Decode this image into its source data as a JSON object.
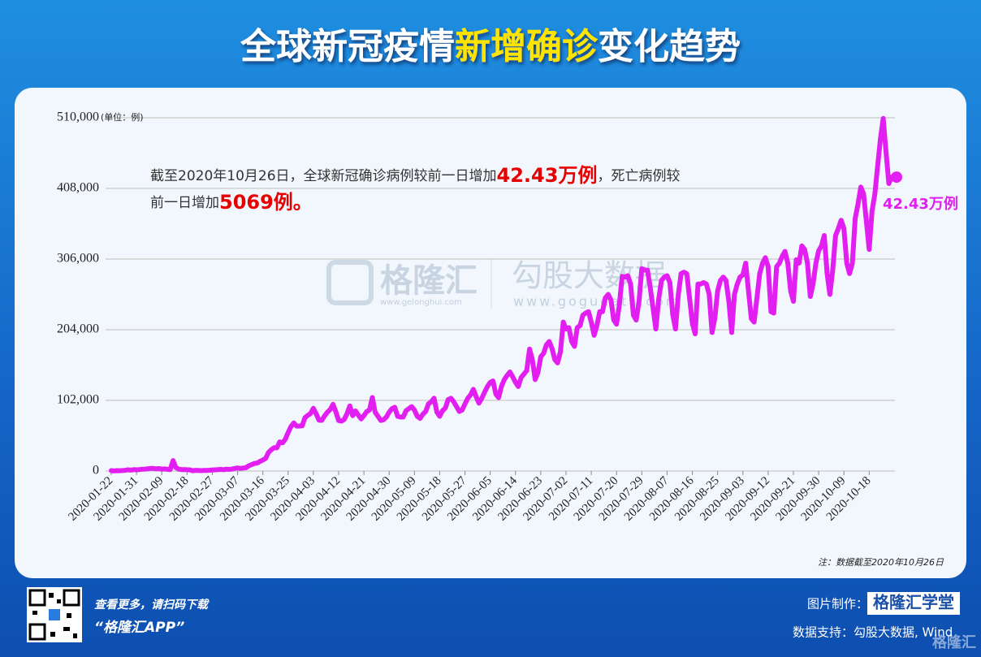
{
  "chart_data": {
    "type": "line",
    "title_parts": [
      {
        "text": "全球新冠疫情",
        "color": "#ffffff"
      },
      {
        "text": "新增确诊",
        "color": "#ffe400"
      },
      {
        "text": "变化趋势",
        "color": "#ffffff"
      }
    ],
    "unit": "(单位：例)",
    "annotation": [
      [
        {
          "text": "截至2020年10月26日，全球新冠确诊病例较前一日增加",
          "color": "#333333"
        },
        {
          "text": "42.43万例",
          "color": "#e60000"
        },
        {
          "text": "，死亡病例较",
          "color": "#333333"
        }
      ],
      [
        {
          "text": "前一日增加",
          "color": "#333333"
        },
        {
          "text": "5069例。",
          "color": "#e60000"
        }
      ]
    ],
    "end_label": "42.43万例",
    "note": "注：数据截至2020年10月26日",
    "watermark": {
      "brand": "格隆汇",
      "brand_url": "www.gelonghui.com",
      "data_brand": "勾股大数据",
      "data_url": "www.gogudata.com"
    },
    "categories": [
      "2020-01-22",
      null,
      null,
      null,
      null,
      null,
      null,
      null,
      null,
      "2020-01-31",
      null,
      null,
      null,
      null,
      null,
      null,
      null,
      null,
      "2020-02-09",
      null,
      null,
      null,
      null,
      null,
      null,
      null,
      null,
      "2020-02-18",
      null,
      null,
      null,
      null,
      null,
      null,
      null,
      null,
      "2020-02-27",
      null,
      null,
      null,
      null,
      null,
      null,
      null,
      null,
      "2020-03-07",
      null,
      null,
      null,
      null,
      null,
      null,
      null,
      null,
      "2020-03-16",
      null,
      null,
      null,
      null,
      null,
      null,
      null,
      null,
      "2020-03-25",
      null,
      null,
      null,
      null,
      null,
      null,
      null,
      null,
      "2020-04-03",
      null,
      null,
      null,
      null,
      null,
      null,
      null,
      null,
      "2020-04-12",
      null,
      null,
      null,
      null,
      null,
      null,
      null,
      null,
      "2020-04-21",
      null,
      null,
      null,
      null,
      null,
      null,
      null,
      null,
      "2020-04-30",
      null,
      null,
      null,
      null,
      null,
      null,
      null,
      null,
      "2020-05-09",
      null,
      null,
      null,
      null,
      null,
      null,
      null,
      null,
      "2020-05-18",
      null,
      null,
      null,
      null,
      null,
      null,
      null,
      null,
      "2020-05-27",
      null,
      null,
      null,
      null,
      null,
      null,
      null,
      null,
      "2020-06-05",
      null,
      null,
      null,
      null,
      null,
      null,
      null,
      null,
      "2020-06-14",
      null,
      null,
      null,
      null,
      null,
      null,
      null,
      null,
      "2020-06-23",
      null,
      null,
      null,
      null,
      null,
      null,
      null,
      null,
      "2020-07-02",
      null,
      null,
      null,
      null,
      null,
      null,
      null,
      null,
      "2020-07-11",
      null,
      null,
      null,
      null,
      null,
      null,
      null,
      null,
      "2020-07-20",
      null,
      null,
      null,
      null,
      null,
      null,
      null,
      null,
      "2020-07-29",
      null,
      null,
      null,
      null,
      null,
      null,
      null,
      null,
      "2020-08-07",
      null,
      null,
      null,
      null,
      null,
      null,
      null,
      null,
      "2020-08-16",
      null,
      null,
      null,
      null,
      null,
      null,
      null,
      null,
      "2020-08-25",
      null,
      null,
      null,
      null,
      null,
      null,
      null,
      null,
      "2020-09-03",
      null,
      null,
      null,
      null,
      null,
      null,
      null,
      null,
      "2020-09-12",
      null,
      null,
      null,
      null,
      null,
      null,
      null,
      null,
      "2020-09-21",
      null,
      null,
      null,
      null,
      null,
      null,
      null,
      null,
      "2020-09-30",
      null,
      null,
      null,
      null,
      null,
      null,
      null,
      null,
      "2020-10-09",
      null,
      null,
      null,
      null,
      null,
      null,
      null,
      null,
      "2020-10-18",
      null,
      null,
      null,
      null,
      null,
      null,
      null,
      null
    ],
    "series": [
      {
        "color": "#e21ff0",
        "values": [
          580,
          100,
          600,
          500,
          700,
          1000,
          1700,
          1300,
          2000,
          1700,
          2100,
          2600,
          2800,
          3200,
          3900,
          3700,
          3200,
          3500,
          2700,
          3000,
          2500,
          2100,
          15100,
          5100,
          2700,
          2100,
          2100,
          1900,
          1800,
          500,
          1000,
          900,
          600,
          800,
          900,
          1200,
          1500,
          1800,
          2000,
          2400,
          1900,
          2700,
          2400,
          2800,
          3800,
          4400,
          3700,
          4300,
          4800,
          7600,
          9200,
          11000,
          11500,
          14000,
          15900,
          18200,
          26900,
          30700,
          33700,
          33500,
          42000,
          40700,
          45900,
          55600,
          64000,
          69400,
          64900,
          65000,
          65300,
          77000,
          80400,
          83000,
          90500,
          82700,
          73400,
          73100,
          79600,
          85000,
          88800,
          96200,
          85700,
          72900,
          72000,
          74500,
          83000,
          94000,
          80000,
          86800,
          80800,
          75300,
          80000,
          85800,
          88000,
          106000,
          85000,
          79000,
          73000,
          74000,
          78000,
          85000,
          90000,
          92000,
          79000,
          78000,
          78000,
          87000,
          90000,
          93000,
          88000,
          79000,
          76000,
          82000,
          86000,
          97000,
          100000,
          105000,
          85000,
          79000,
          87000,
          91000,
          103000,
          105000,
          100000,
          93000,
          86000,
          88000,
          97000,
          105000,
          110000,
          118000,
          107000,
          98000,
          105000,
          114000,
          122000,
          128000,
          130000,
          111000,
          106000,
          122000,
          132000,
          138000,
          143000,
          136000,
          128000,
          122000,
          135000,
          140000,
          145000,
          176000,
          161000,
          132000,
          142000,
          165000,
          170000,
          182000,
          187000,
          177000,
          161000,
          156000,
          172000,
          215000,
          205000,
          207000,
          187000,
          180000,
          207000,
          210000,
          225000,
          228000,
          230000,
          215000,
          196000,
          210000,
          230000,
          230000,
          250000,
          255000,
          247000,
          218000,
          212000,
          240000,
          281000,
          280000,
          282000,
          270000,
          225000,
          218000,
          245000,
          292000,
          290000,
          290000,
          265000,
          235000,
          205000,
          248000,
          275000,
          280000,
          282000,
          272000,
          226000,
          205000,
          255000,
          285000,
          287000,
          285000,
          250000,
          213000,
          198000,
          270000,
          270000,
          272000,
          270000,
          255000,
          200000,
          220000,
          260000,
          275000,
          280000,
          275000,
          245000,
          200000,
          255000,
          270000,
          280000,
          283000,
          300000,
          260000,
          220000,
          215000,
          250000,
          285000,
          300000,
          308000,
          295000,
          230000,
          228000,
          295000,
          300000,
          310000,
          317000,
          300000,
          260000,
          245000,
          305000,
          300000,
          325000,
          320000,
          300000,
          252000,
          270000,
          300000,
          318000,
          325000,
          340000,
          285000,
          255000,
          290000,
          340000,
          350000,
          362000,
          350000,
          300000,
          285000,
          300000,
          365000,
          385000,
          410000,
          400000,
          360000,
          320000,
          375000,
          400000,
          440000,
          480000,
          509000,
          460000,
          415000,
          424300
        ]
      }
    ],
    "ylim": [
      0,
      510000
    ],
    "yticks": [
      0,
      {
        "value": 102000,
        "label": "102,000"
      },
      {
        "value": 204000,
        "label": "204,000"
      },
      {
        "value": 306000,
        "label": "306,000"
      },
      {
        "value": 408000,
        "label": "408,000"
      },
      {
        "value": 510000,
        "label": "510,000"
      }
    ],
    "grid": true
  },
  "footer": {
    "scan_text": "查看更多，请扫码下载",
    "app_name": "“格隆汇APP”",
    "made_by_label": "图片制作：",
    "made_by": "格隆汇学堂",
    "source": "数据支持：勾股大数据, Wind",
    "logo": "格隆汇"
  }
}
